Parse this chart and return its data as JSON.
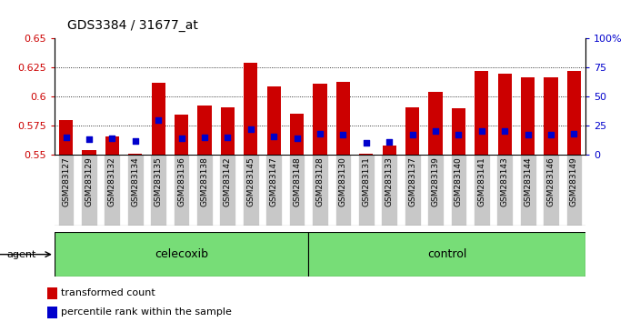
{
  "title": "GDS3384 / 31677_at",
  "samples": [
    "GSM283127",
    "GSM283129",
    "GSM283132",
    "GSM283134",
    "GSM283135",
    "GSM283136",
    "GSM283138",
    "GSM283142",
    "GSM283145",
    "GSM283147",
    "GSM283148",
    "GSM283128",
    "GSM283130",
    "GSM283131",
    "GSM283133",
    "GSM283137",
    "GSM283139",
    "GSM283140",
    "GSM283141",
    "GSM283143",
    "GSM283144",
    "GSM283146",
    "GSM283149"
  ],
  "red_values": [
    0.5795,
    0.5535,
    0.5655,
    0.551,
    0.612,
    0.5845,
    0.592,
    0.5905,
    0.629,
    0.609,
    0.5855,
    0.611,
    0.613,
    0.551,
    0.5575,
    0.591,
    0.604,
    0.59,
    0.622,
    0.62,
    0.617,
    0.617,
    0.622
  ],
  "blue_values": [
    15,
    13,
    14,
    12,
    30,
    14,
    15,
    15,
    22,
    16,
    14,
    18,
    17,
    10,
    11,
    17,
    20,
    17,
    20,
    20,
    17,
    17,
    18
  ],
  "celecoxib_count": 11,
  "control_count": 12,
  "ylim_left": [
    0.55,
    0.65
  ],
  "ylim_right": [
    0,
    100
  ],
  "yticks_left": [
    0.55,
    0.575,
    0.6,
    0.625,
    0.65
  ],
  "yticks_right": [
    0,
    25,
    50,
    75,
    100
  ],
  "ytick_labels_left": [
    "0.55",
    "0.575",
    "0.6",
    "0.625",
    "0.65"
  ],
  "ytick_labels_right": [
    "0",
    "25",
    "50",
    "75",
    "100%"
  ],
  "bar_color": "#cc0000",
  "blue_color": "#0000cc",
  "celecoxib_label": "celecoxib",
  "control_label": "control",
  "agent_label": "agent",
  "legend_red": "transformed count",
  "legend_blue": "percentile rank within the sample",
  "bar_width": 0.6,
  "col_bg_color": "#c8c8c8",
  "agent_bg_color": "#77dd77",
  "plot_bg": "#ffffff"
}
